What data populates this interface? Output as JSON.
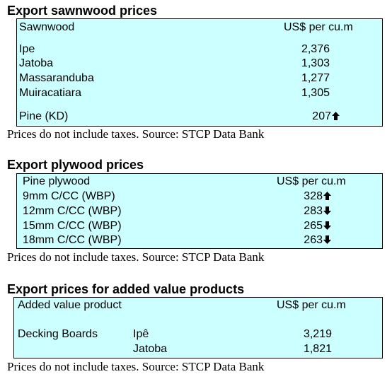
{
  "sawnwood": {
    "title": "Export sawnwood prices",
    "col_product": "Sawnwood",
    "col_price": "US$ per cu.m",
    "rows": [
      {
        "name": "Ipe",
        "price": "2,376"
      },
      {
        "name": "Jatoba",
        "price": "1,303"
      },
      {
        "name": "Massaranduba",
        "price": "1,277"
      },
      {
        "name": "Muiracatiara",
        "price": "1,305"
      }
    ],
    "pine": {
      "name": "Pine (KD)",
      "price": "207",
      "trend": "up"
    },
    "note": "Prices do not include taxes. Source: STCP Data Bank"
  },
  "plywood": {
    "title": "Export plywood prices",
    "col_product": "Pine plywood",
    "col_price": "US$ per cu.m",
    "rows": [
      {
        "name": "9mm C/CC (WBP)",
        "price": "328",
        "trend": "up"
      },
      {
        "name": "12mm C/CC (WBP)",
        "price": "283",
        "trend": "down"
      },
      {
        "name": "15mm C/CC (WBP)",
        "price": "265",
        "trend": "down"
      },
      {
        "name": "18mm C/CC (WBP)",
        "price": "263",
        "trend": "down"
      }
    ],
    "note": "Prices do not include taxes. Source: STCP Data Bank"
  },
  "added_value": {
    "title": "Export prices for added value products",
    "col_product": "Added value product",
    "col_price": "US$ per cu.m",
    "product": "Decking Boards",
    "rows": [
      {
        "species": "Ipê",
        "price": "3,219"
      },
      {
        "species": "Jatoba",
        "price": "1,821"
      }
    ],
    "note": "Prices do not include taxes. Source: STCP Data Bank"
  },
  "colors": {
    "table_bg": "#ccffff",
    "border": "#000000",
    "text": "#000000"
  },
  "icons": {
    "up": "up-arrow-icon",
    "down": "down-arrow-icon"
  }
}
